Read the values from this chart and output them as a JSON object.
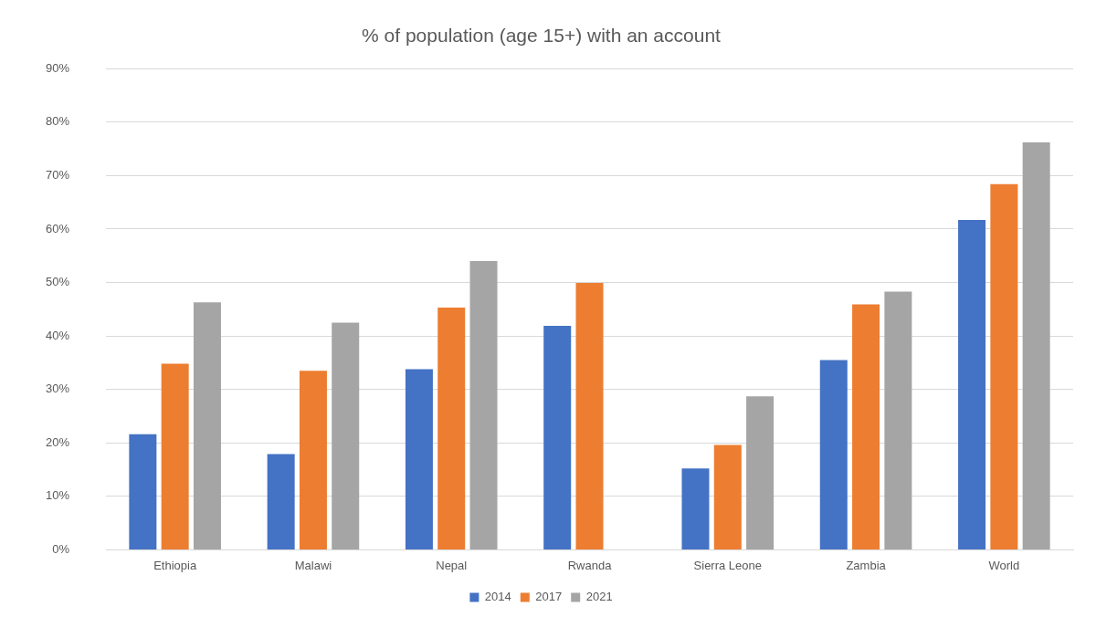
{
  "chart_data": {
    "type": "bar",
    "title": "% of population (age 15+) with an account",
    "categories": [
      "Ethiopia",
      "Malawi",
      "Nepal",
      "Rwanda",
      "Sierra Leone",
      "Zambia",
      "World"
    ],
    "series": [
      {
        "name": "2014",
        "color": "#4472c4",
        "values": [
          21.6,
          17.9,
          33.8,
          41.9,
          15.2,
          35.5,
          61.7
        ]
      },
      {
        "name": "2017",
        "color": "#ed7d31",
        "values": [
          34.8,
          33.5,
          45.3,
          49.9,
          19.6,
          45.9,
          68.4
        ]
      },
      {
        "name": "2021",
        "color": "#a5a5a5",
        "values": [
          46.3,
          42.5,
          54.0,
          null,
          28.7,
          48.3,
          76.2
        ]
      }
    ],
    "ylim": [
      0,
      90
    ],
    "yticks": [
      {
        "value": 0,
        "label": "0%"
      },
      {
        "value": 10,
        "label": "10%"
      },
      {
        "value": 20,
        "label": "20%"
      },
      {
        "value": 30,
        "label": "30%"
      },
      {
        "value": 40,
        "label": "40%"
      },
      {
        "value": 50,
        "label": "50%"
      },
      {
        "value": 60,
        "label": "60%"
      },
      {
        "value": 70,
        "label": "70%"
      },
      {
        "value": 80,
        "label": "80%"
      },
      {
        "value": 90,
        "label": "90%"
      }
    ],
    "grid": "y",
    "legend": "bottom"
  }
}
